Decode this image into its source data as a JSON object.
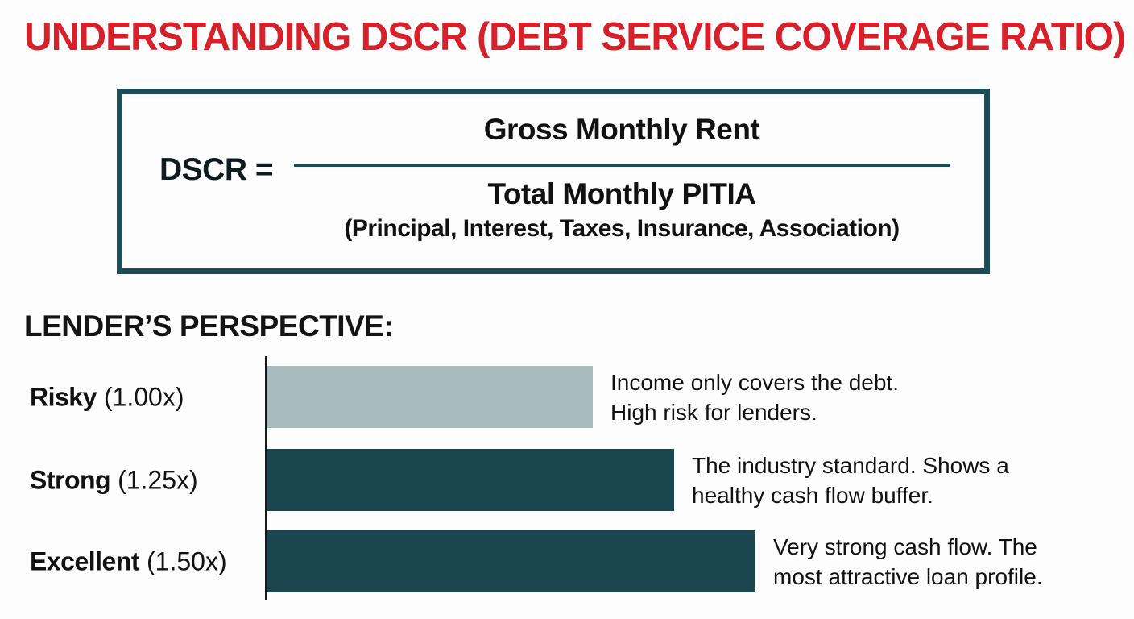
{
  "title": "UNDERSTANDING DSCR (DEBT SERVICE COVERAGE RATIO)",
  "formula": {
    "lhs": "DSCR =",
    "numerator": "Gross Monthly Rent",
    "denominator": "Total Monthly PITIA",
    "denominator_note": "(Principal, Interest, Taxes, Insurance, Association)"
  },
  "section_heading": "LENDER’S PERSPECTIVE:",
  "chart_data": {
    "type": "bar",
    "orientation": "horizontal",
    "title": "LENDER’S PERSPECTIVE:",
    "categories": [
      "Risky",
      "Strong",
      "Excellent"
    ],
    "values": [
      1.0,
      1.25,
      1.5
    ],
    "xlim": [
      0,
      1.6
    ],
    "grid": false,
    "legend": false,
    "rows": [
      {
        "name": "Risky",
        "ratio_label": "(1.00x)",
        "value": 1.0,
        "color": "#a9bbbf",
        "note": "Income only covers the debt.\nHigh risk for lenders."
      },
      {
        "name": "Strong",
        "ratio_label": "(1.25x)",
        "value": 1.25,
        "color": "#1b4650",
        "note": "The industry standard. Shows a\nhealthy cash flow buffer."
      },
      {
        "name": "Excellent",
        "ratio_label": "(1.50x)",
        "value": 1.5,
        "color": "#1b4650",
        "note": "Very strong cash flow. The\nmost attractive loan profile."
      }
    ]
  },
  "colors": {
    "title_red": "#d7202a",
    "dark_teal": "#1b4650",
    "light_gray_blue": "#a9bbbf",
    "border_teal": "#1e4c55",
    "text": "#111111",
    "background": "#fdfdfd"
  }
}
